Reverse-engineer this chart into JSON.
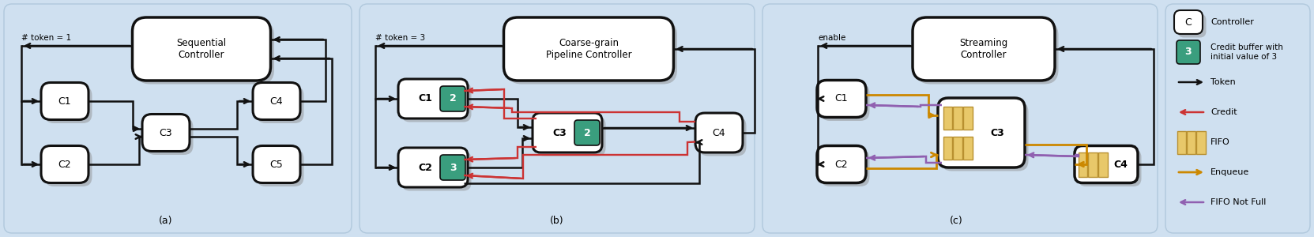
{
  "bg_color": "#cfe0f0",
  "legend_bg": "#cfe0f0",
  "box_white": "#ffffff",
  "credit_green": "#3a9e7e",
  "fifo_yellow": "#e8c86a",
  "fifo_edge": "#b89030",
  "arrow_black": "#111111",
  "arrow_red": "#cc3333",
  "arrow_orange": "#cc8800",
  "arrow_purple": "#9060b0",
  "shadow_color": "#888888",
  "panel_edge": "#b0c8dc",
  "title_a": "Sequential\nController",
  "title_b": "Coarse-grain\nPipeline Controller",
  "title_c": "Streaming\nController",
  "label_a": "(a)",
  "label_b": "(b)",
  "label_c": "(c)",
  "token_a": "# token = 1",
  "token_b": "# token = 3",
  "enable_c": "enable",
  "leg_controller": "Controller",
  "leg_credit_buf": "Credit buffer with\ninitial value of 3",
  "leg_token": "Token",
  "leg_credit": "Credit",
  "leg_fifo": "FIFO",
  "leg_enqueue": "Enqueue",
  "leg_fifofull": "FIFO Not Full"
}
